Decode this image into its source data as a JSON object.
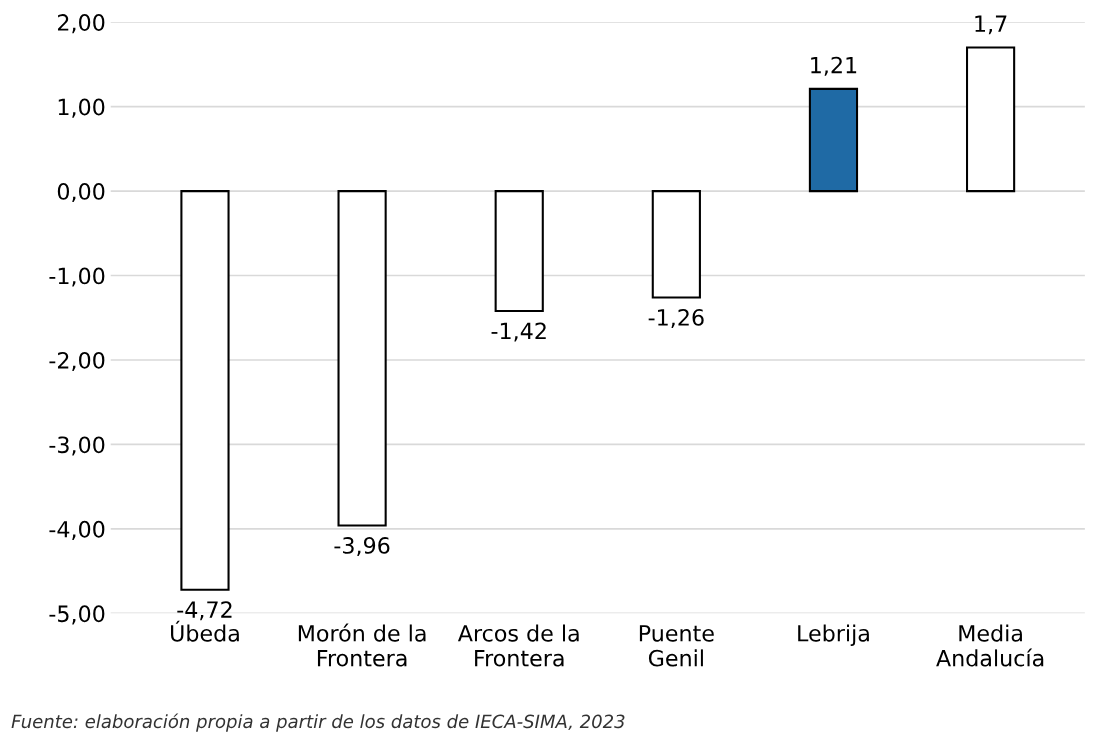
{
  "chart_data": {
    "type": "bar",
    "categories": [
      "Úbeda",
      "Morón de la\nFrontera",
      "Arcos de la\nFrontera",
      "Puente\nGenil",
      "Lebrija",
      "Media\nAndalucía"
    ],
    "values": [
      -4.72,
      -3.96,
      -1.42,
      -1.26,
      1.21,
      1.7
    ],
    "value_labels": [
      "-4,72",
      "-3,96",
      "-1,42",
      "-1,26",
      "1,21",
      "1,7"
    ],
    "colors": [
      "#ffffff",
      "#ffffff",
      "#ffffff",
      "#ffffff",
      "#1f6aa5",
      "#ffffff"
    ],
    "ylim": [
      -5,
      2
    ],
    "yticks": [
      {
        "value": -5,
        "label": "-5,00"
      },
      {
        "value": -4,
        "label": "-4,00"
      },
      {
        "value": -3,
        "label": "-3,00"
      },
      {
        "value": -2,
        "label": "-2,00"
      },
      {
        "value": -1,
        "label": "-1,00"
      },
      {
        "value": 0,
        "label": "0,00"
      },
      {
        "value": 1,
        "label": "1,00"
      },
      {
        "value": 2,
        "label": "2,00"
      }
    ],
    "grid": "y",
    "annotations": [
      "Fuente: elaboración propia a partir de los datos de IECA-SIMA, 2023"
    ]
  }
}
